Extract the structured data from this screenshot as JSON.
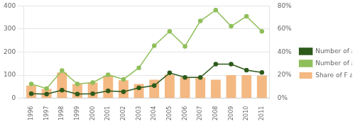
{
  "chart_data": {
    "type": "bar",
    "categories": [
      "1996",
      "1997",
      "1998",
      "1999",
      "2000",
      "2001",
      "2002",
      "2003",
      "2004",
      "2005",
      "2006",
      "2007",
      "2008",
      "2009",
      "2010",
      "2011"
    ],
    "series": [
      {
        "name": "Share of F authorship",
        "type": "bar",
        "color": "#f4b882",
        "values": [
          55,
          40,
          112,
          62,
          68,
          97,
          78,
          62,
          80,
          102,
          90,
          90,
          80,
          100,
          100,
          98
        ]
      },
      {
        "name": "Number of articles",
        "type": "line",
        "color": "#2d5a1b",
        "marker": "circle",
        "line_style": "solid",
        "values": [
          20,
          18,
          35,
          18,
          20,
          32,
          28,
          45,
          55,
          110,
          90,
          90,
          148,
          148,
          122,
          112
        ]
      },
      {
        "name": "Number of authors",
        "type": "line",
        "color": "#8fbf5a",
        "marker": "circle",
        "line_style": "solid",
        "values": [
          62,
          42,
          120,
          62,
          68,
          102,
          82,
          132,
          228,
          290,
          225,
          335,
          382,
          312,
          355,
          290
        ]
      }
    ],
    "ylim": [
      0,
      400
    ],
    "yticks": [
      0,
      100,
      200,
      300,
      400
    ],
    "y2lim": [
      0,
      0.8
    ],
    "y2ticks": [
      {
        "value": 0,
        "label": "0%"
      },
      {
        "value": 0.2,
        "label": "20%"
      },
      {
        "value": 0.4,
        "label": "40%"
      },
      {
        "value": 0.6,
        "label": "60%"
      },
      {
        "value": 0.8,
        "label": "80%"
      }
    ],
    "grid": true,
    "legend": "right"
  }
}
